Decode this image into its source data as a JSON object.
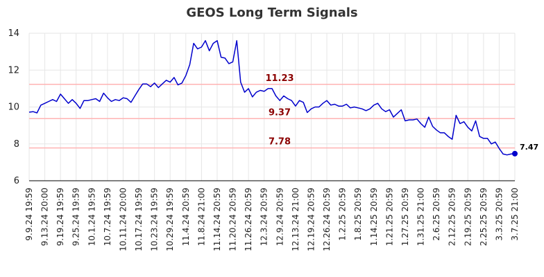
{
  "chart_data": {
    "type": "line",
    "title": "GEOS Long Term Signals",
    "xlabel": "",
    "ylabel": "",
    "ylim": [
      6,
      14
    ],
    "y_ticks": [
      "6",
      "8",
      "10",
      "12",
      "14"
    ],
    "x_ticks": [
      "9.9.24 19:59",
      "9.13.24 20:00",
      "9.19.24 19:59",
      "9.25.24 19:59",
      "10.1.24 19:59",
      "10.7.24 19:59",
      "10.11.24 20:00",
      "10.17.24 19:59",
      "10.23.24 19:59",
      "10.29.24 19:59",
      "11.4.24 20:59",
      "11.8.24 21:00",
      "11.14.24 20:59",
      "11.20.24 20:59",
      "11.26.24 20:59",
      "12.3.24 20:59",
      "12.9.24 20:59",
      "12.13.24 21:00",
      "12.19.24 20:59",
      "12.26.24 20:59",
      "1.2.25 20:59",
      "1.8.25 20:59",
      "1.14.25 20:59",
      "1.21.25 20:59",
      "1.27.25 20:59",
      "1.31.25 21:00",
      "2.6.25 20:59",
      "2.12.25 20:59",
      "2.19.25 20:59",
      "2.25.25 20:59",
      "3.3.25 20:59",
      "3.7.25 21:00"
    ],
    "grid": true,
    "series": [
      {
        "color": "#0000cc",
        "values": [
          9.72,
          9.75,
          9.68,
          10.1,
          10.2,
          10.3,
          10.4,
          10.3,
          10.7,
          10.45,
          10.2,
          10.4,
          10.2,
          9.92,
          10.35,
          10.35,
          10.4,
          10.45,
          10.3,
          10.75,
          10.5,
          10.3,
          10.4,
          10.35,
          10.5,
          10.45,
          10.25,
          10.6,
          10.95,
          11.25,
          11.25,
          11.1,
          11.3,
          11.05,
          11.25,
          11.45,
          11.35,
          11.6,
          11.2,
          11.3,
          11.7,
          12.3,
          13.45,
          13.15,
          13.25,
          13.6,
          13.05,
          13.45,
          13.6,
          12.7,
          12.65,
          12.35,
          12.45,
          13.6,
          11.35,
          10.8,
          11.0,
          10.55,
          10.8,
          10.9,
          10.85,
          11.0,
          11.0,
          10.6,
          10.35,
          10.6,
          10.45,
          10.35,
          10.05,
          10.35,
          10.25,
          9.7,
          9.9,
          10.0,
          10.0,
          10.2,
          10.35,
          10.1,
          10.15,
          10.05,
          10.05,
          10.15,
          9.95,
          10.0,
          9.95,
          9.9,
          9.8,
          9.9,
          10.1,
          10.2,
          9.9,
          9.75,
          9.85,
          9.45,
          9.65,
          9.85,
          9.25,
          9.3,
          9.3,
          9.35,
          9.1,
          8.9,
          9.45,
          8.95,
          8.75,
          8.6,
          8.6,
          8.4,
          8.25,
          9.55,
          9.1,
          9.2,
          8.9,
          8.7,
          9.25,
          8.4,
          8.3,
          8.3,
          8.0,
          8.1,
          7.75,
          7.45,
          7.4,
          7.45,
          7.47
        ]
      }
    ],
    "hlines": [
      {
        "value": 11.23,
        "label": "11.23",
        "color": "#ffb3b3",
        "label_color": "#8b0000"
      },
      {
        "value": 9.37,
        "label": "9.37",
        "color": "#ffb3b3",
        "label_color": "#8b0000"
      },
      {
        "value": 7.78,
        "label": "7.78",
        "color": "#ffb3b3",
        "label_color": "#8b0000"
      }
    ],
    "last_point": {
      "value": 7.47,
      "label": "7.47"
    }
  }
}
